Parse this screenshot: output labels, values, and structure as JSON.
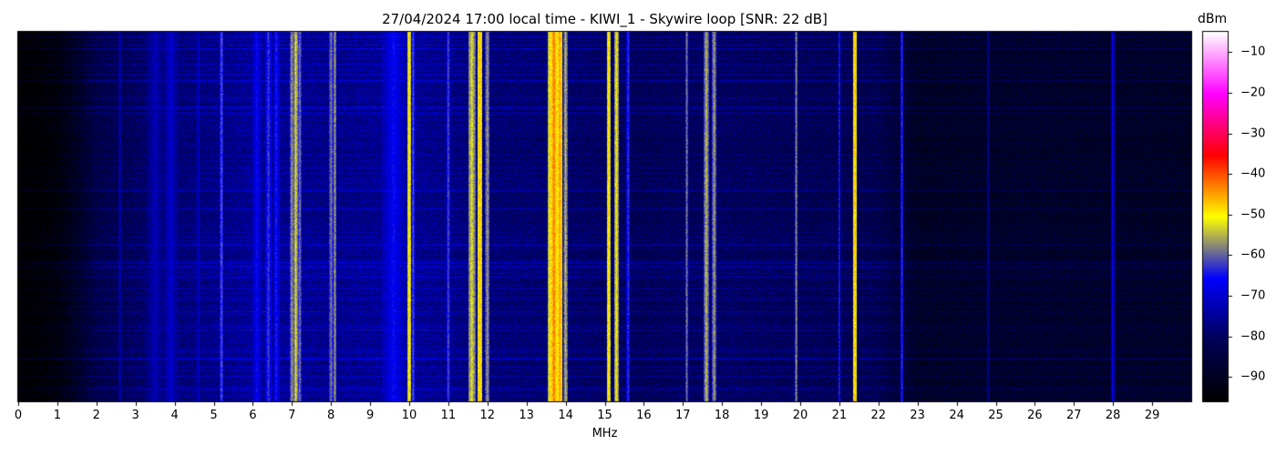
{
  "chart_data": {
    "type": "heatmap",
    "title": "27/04/2024 17:00 local time - KIWI_1 - Skywire loop [SNR: 22 dB]",
    "xlabel": "MHz",
    "ylabel": "",
    "xlim": [
      0,
      30
    ],
    "x_ticks": [
      "0",
      "1",
      "2",
      "3",
      "4",
      "5",
      "6",
      "7",
      "8",
      "9",
      "10",
      "11",
      "12",
      "13",
      "14",
      "15",
      "16",
      "17",
      "18",
      "19",
      "20",
      "21",
      "22",
      "23",
      "24",
      "25",
      "26",
      "27",
      "28",
      "29"
    ],
    "colorbar": {
      "label": "dBm",
      "range": [
        -96,
        -5
      ],
      "ticks": [
        "−10",
        "−20",
        "−30",
        "−40",
        "−50",
        "−60",
        "−70",
        "−80",
        "−90"
      ],
      "tick_values": [
        -10,
        -20,
        -30,
        -40,
        -50,
        -60,
        -70,
        -80,
        -90
      ],
      "colormap": [
        "#000000",
        "#000055",
        "#0000ff",
        "#ffff00",
        "#ff0000",
        "#ff00ff",
        "#ffffff"
      ]
    },
    "noise_floor_dbm": [
      [
        0.0,
        -96
      ],
      [
        0.5,
        -95
      ],
      [
        1.0,
        -93
      ],
      [
        1.5,
        -88
      ],
      [
        2.0,
        -82
      ],
      [
        3.0,
        -79
      ],
      [
        4.0,
        -77
      ],
      [
        6.0,
        -74
      ],
      [
        8.0,
        -75
      ],
      [
        10.0,
        -74
      ],
      [
        12.0,
        -77
      ],
      [
        14.0,
        -78
      ],
      [
        16.0,
        -80
      ],
      [
        18.0,
        -79
      ],
      [
        20.0,
        -80
      ],
      [
        22.0,
        -81
      ],
      [
        23.0,
        -88
      ],
      [
        26.0,
        -87
      ],
      [
        30.0,
        -88
      ]
    ],
    "signals": [
      {
        "mhz": 2.6,
        "dbm": -70,
        "width": 0.03
      },
      {
        "mhz": 3.5,
        "dbm": -72,
        "width": 0.25
      },
      {
        "mhz": 3.9,
        "dbm": -70,
        "width": 0.2
      },
      {
        "mhz": 4.6,
        "dbm": -70,
        "width": 0.05
      },
      {
        "mhz": 5.2,
        "dbm": -60,
        "width": 0.05
      },
      {
        "mhz": 6.1,
        "dbm": -66,
        "width": 0.12
      },
      {
        "mhz": 6.4,
        "dbm": -62,
        "width": 0.08
      },
      {
        "mhz": 6.6,
        "dbm": -64,
        "width": 0.08
      },
      {
        "mhz": 7.0,
        "dbm": -56,
        "width": 0.05
      },
      {
        "mhz": 7.1,
        "dbm": -52,
        "width": 0.05
      },
      {
        "mhz": 7.2,
        "dbm": -58,
        "width": 0.05
      },
      {
        "mhz": 8.0,
        "dbm": -58,
        "width": 0.06
      },
      {
        "mhz": 8.1,
        "dbm": -56,
        "width": 0.04
      },
      {
        "mhz": 9.6,
        "dbm": -66,
        "width": 0.3
      },
      {
        "mhz": 10.0,
        "dbm": -48,
        "width": 0.05
      },
      {
        "mhz": 10.1,
        "dbm": -60,
        "width": 0.04
      },
      {
        "mhz": 11.0,
        "dbm": -60,
        "width": 0.04
      },
      {
        "mhz": 11.6,
        "dbm": -52,
        "width": 0.09
      },
      {
        "mhz": 11.8,
        "dbm": -46,
        "width": 0.06
      },
      {
        "mhz": 12.0,
        "dbm": -56,
        "width": 0.06
      },
      {
        "mhz": 13.6,
        "dbm": -48,
        "width": 0.05
      },
      {
        "mhz": 13.7,
        "dbm": -42,
        "width": 0.07
      },
      {
        "mhz": 13.85,
        "dbm": -44,
        "width": 0.07
      },
      {
        "mhz": 14.0,
        "dbm": -54,
        "width": 0.05
      },
      {
        "mhz": 15.1,
        "dbm": -48,
        "width": 0.05
      },
      {
        "mhz": 15.3,
        "dbm": -50,
        "width": 0.05
      },
      {
        "mhz": 15.6,
        "dbm": -62,
        "width": 0.05
      },
      {
        "mhz": 17.1,
        "dbm": -58,
        "width": 0.04
      },
      {
        "mhz": 17.6,
        "dbm": -54,
        "width": 0.06
      },
      {
        "mhz": 17.8,
        "dbm": -56,
        "width": 0.06
      },
      {
        "mhz": 19.9,
        "dbm": -56,
        "width": 0.03
      },
      {
        "mhz": 21.0,
        "dbm": -62,
        "width": 0.03
      },
      {
        "mhz": 21.4,
        "dbm": -46,
        "width": 0.05
      },
      {
        "mhz": 22.6,
        "dbm": -62,
        "width": 0.03
      },
      {
        "mhz": 24.8,
        "dbm": -72,
        "width": 0.03
      },
      {
        "mhz": 28.0,
        "dbm": -66,
        "width": 0.04
      }
    ]
  }
}
